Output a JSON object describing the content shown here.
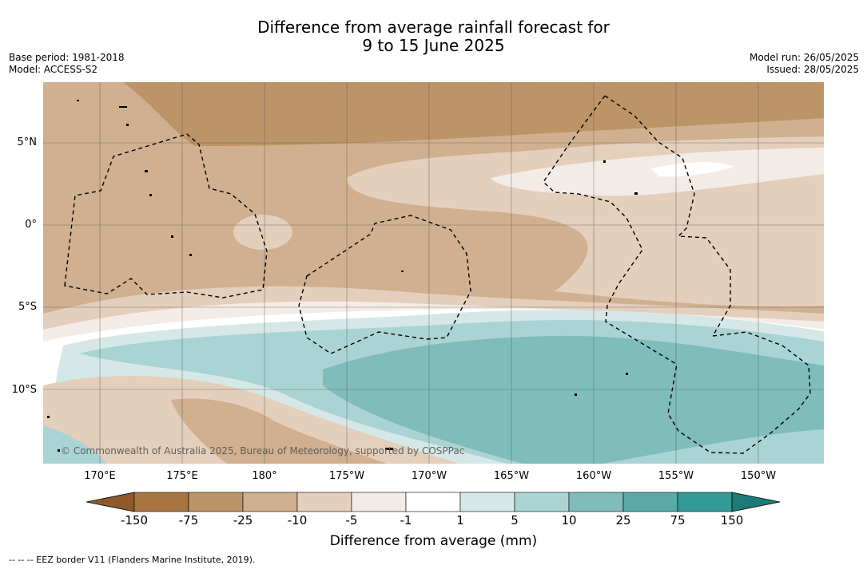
{
  "title": {
    "line1": "Difference from average rainfall forecast for",
    "line2": "9 to 15 June 2025"
  },
  "meta": {
    "base_period": "Base period: 1981-2018",
    "model": "Model: ACCESS-S2",
    "model_run": "Model run: 26/05/2025",
    "issued": "Issued: 28/05/2025"
  },
  "map": {
    "lat_labels": [
      "5°N",
      "0°",
      "5°S",
      "10°S"
    ],
    "lon_labels": [
      "170°E",
      "175°E",
      "180°",
      "175°W",
      "170°W",
      "165°W",
      "160°W",
      "155°W",
      "150°W"
    ],
    "copyright": "© Commonwealth of Australia 2025, Bureau of Meteorology, supported by COSPPac"
  },
  "legend": {
    "ticks": [
      "-150",
      "-75",
      "-25",
      "-10",
      "-5",
      "-1",
      "1",
      "5",
      "10",
      "25",
      "75",
      "150"
    ],
    "colors": [
      "#8d5a2e",
      "#a87442",
      "#bd9468",
      "#d0b090",
      "#e3cfbb",
      "#f3ece6",
      "#ffffff",
      "#d5e8e7",
      "#aad4d3",
      "#80bcbc",
      "#59a9a8",
      "#349a98",
      "#1e7a78"
    ],
    "label": "Difference from average (mm)"
  },
  "footnote": "-- -- -- EEZ border V11 (Flanders Marine Institute, 2019)."
}
